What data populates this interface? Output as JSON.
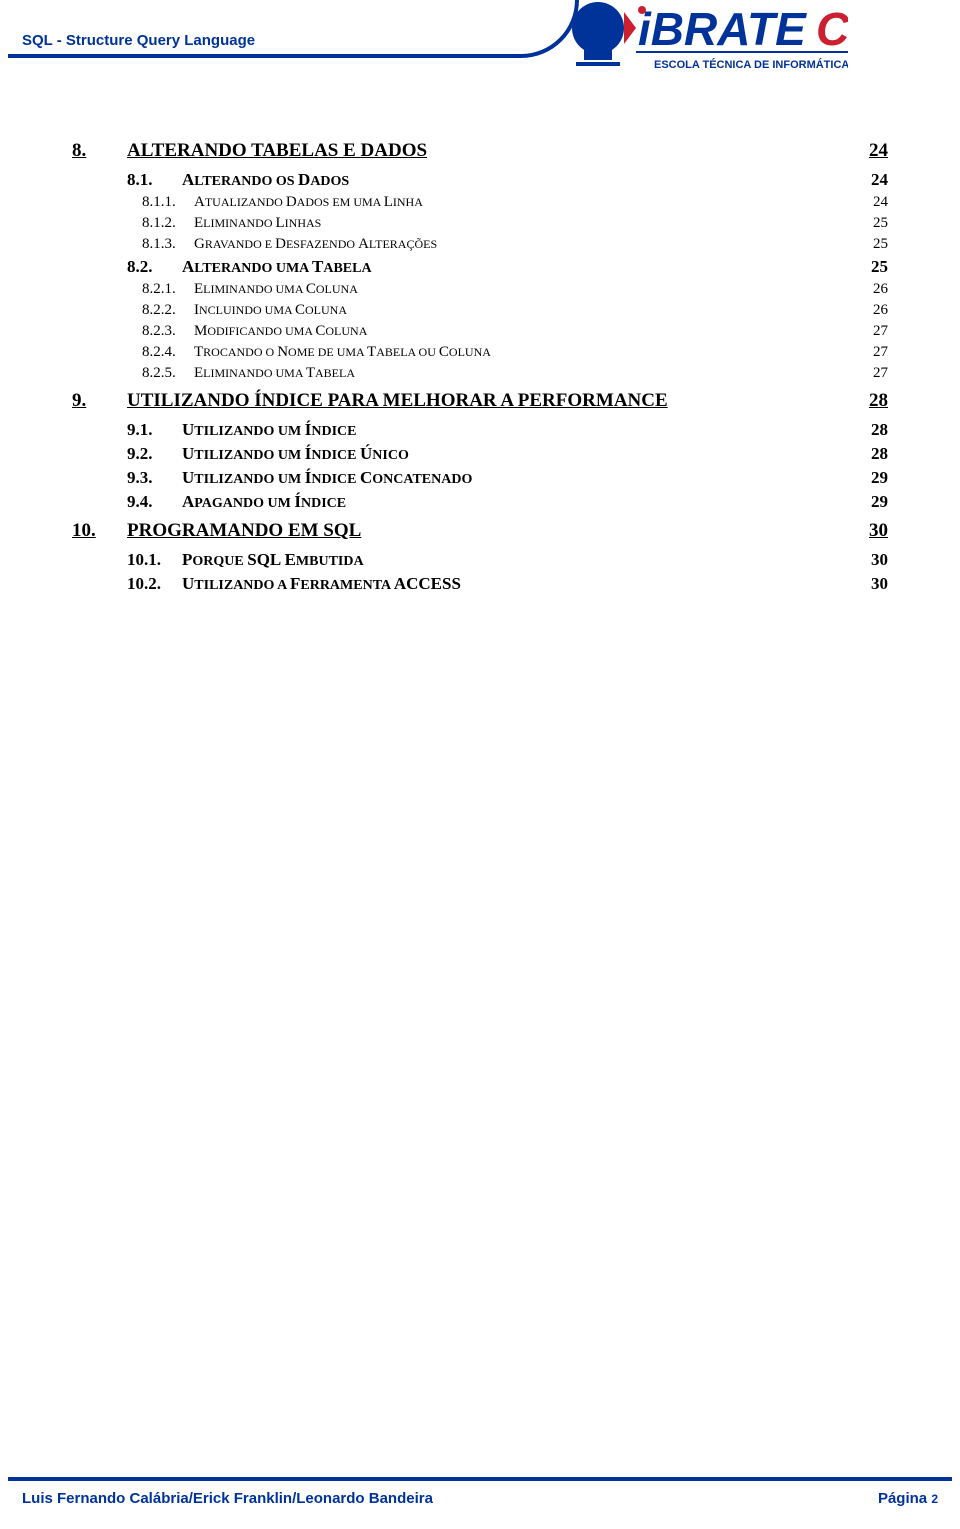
{
  "header": {
    "label": "SQL - Structure Query Language",
    "brand_line1": "iBRATEC",
    "brand_line2": "ESCOLA TÉCNICA DE INFORMÁTICA"
  },
  "colors": {
    "brand_blue": "#003399",
    "brand_red": "#cc1f2f",
    "text": "#000000",
    "background": "#ffffff"
  },
  "toc": [
    {
      "num": "8.",
      "title": "ALTERANDO TABELAS E DADOS",
      "page": "24",
      "children": [
        {
          "num": "8.1.",
          "title_first": "A",
          "title_rest": "LTERANDO OS ",
          "title_first2": "D",
          "title_rest2": "ADOS",
          "page": "24",
          "children": [
            {
              "num": "8.1.1.",
              "title_first": "A",
              "title_rest": "TUALIZANDO ",
              "title_first2": "D",
              "title_rest2": "ADOS EM UMA ",
              "title_first3": "L",
              "title_rest3": "INHA",
              "page": "24"
            },
            {
              "num": "8.1.2.",
              "title_first": "E",
              "title_rest": "LIMINANDO ",
              "title_first2": "L",
              "title_rest2": "INHAS",
              "page": "25"
            },
            {
              "num": "8.1.3.",
              "title_first": "G",
              "title_rest": "RAVANDO E ",
              "title_first2": "D",
              "title_rest2": "ESFAZENDO ",
              "title_first3": "A",
              "title_rest3": "LTERAÇÕES",
              "page": "25"
            }
          ]
        },
        {
          "num": "8.2.",
          "title_first": "A",
          "title_rest": "LTERANDO UMA ",
          "title_first2": "T",
          "title_rest2": "ABELA",
          "page": "25",
          "children": [
            {
              "num": "8.2.1.",
              "title_first": "E",
              "title_rest": "LIMINANDO UMA ",
              "title_first2": "C",
              "title_rest2": "OLUNA",
              "page": "26"
            },
            {
              "num": "8.2.2.",
              "title_first": "I",
              "title_rest": "NCLUINDO UMA ",
              "title_first2": "C",
              "title_rest2": "OLUNA",
              "page": "26"
            },
            {
              "num": "8.2.3.",
              "title_first": "M",
              "title_rest": "ODIFICANDO UMA ",
              "title_first2": "C",
              "title_rest2": "OLUNA",
              "page": "27"
            },
            {
              "num": "8.2.4.",
              "title_first": "T",
              "title_rest": "ROCANDO O ",
              "title_first2": "N",
              "title_rest2": "OME DE UMA ",
              "title_first3": "T",
              "title_rest3": "ABELA OU ",
              "title_first4": "C",
              "title_rest4": "OLUNA",
              "page": "27"
            },
            {
              "num": "8.2.5.",
              "title_first": "E",
              "title_rest": "LIMINANDO UMA ",
              "title_first2": "T",
              "title_rest2": "ABELA",
              "page": "27"
            }
          ]
        }
      ]
    },
    {
      "num": "9.",
      "title": "UTILIZANDO ÍNDICE PARA MELHORAR A PERFORMANCE",
      "page": "28",
      "children": [
        {
          "num": "9.1.",
          "title_first": "U",
          "title_rest": "TILIZANDO UM ",
          "title_first2": "Í",
          "title_rest2": "NDICE",
          "page": "28"
        },
        {
          "num": "9.2.",
          "title_first": "U",
          "title_rest": "TILIZANDO UM ",
          "title_first2": "Í",
          "title_rest2": "NDICE ",
          "title_first3": "Ú",
          "title_rest3": "NICO",
          "page": "28"
        },
        {
          "num": "9.3.",
          "title_first": "U",
          "title_rest": "TILIZANDO UM ",
          "title_first2": "Í",
          "title_rest2": "NDICE ",
          "title_first3": "C",
          "title_rest3": "ONCATENADO",
          "page": "29"
        },
        {
          "num": "9.4.",
          "title_first": "A",
          "title_rest": "PAGANDO UM ",
          "title_first2": "Í",
          "title_rest2": "NDICE",
          "page": "29"
        }
      ]
    },
    {
      "num": "10.",
      "title": "PROGRAMANDO EM SQL",
      "page": "30",
      "children": [
        {
          "num": "10.1.",
          "title_first": "P",
          "title_rest": "ORQUE ",
          "title_first2": "SQL E",
          "title_rest2": "MBUTIDA",
          "page": "30"
        },
        {
          "num": "10.2.",
          "title_first": "U",
          "title_rest": "TILIZANDO A ",
          "title_first2": "F",
          "title_rest2": "ERRAMENTA ",
          "title_first3": "ACCESS",
          "title_rest3": "",
          "page": "30"
        }
      ]
    }
  ],
  "footer": {
    "authors": "Luis Fernando Calábria/Erick Franklin/Leonardo Bandeira",
    "page_label": "Página ",
    "page_num": "2"
  }
}
